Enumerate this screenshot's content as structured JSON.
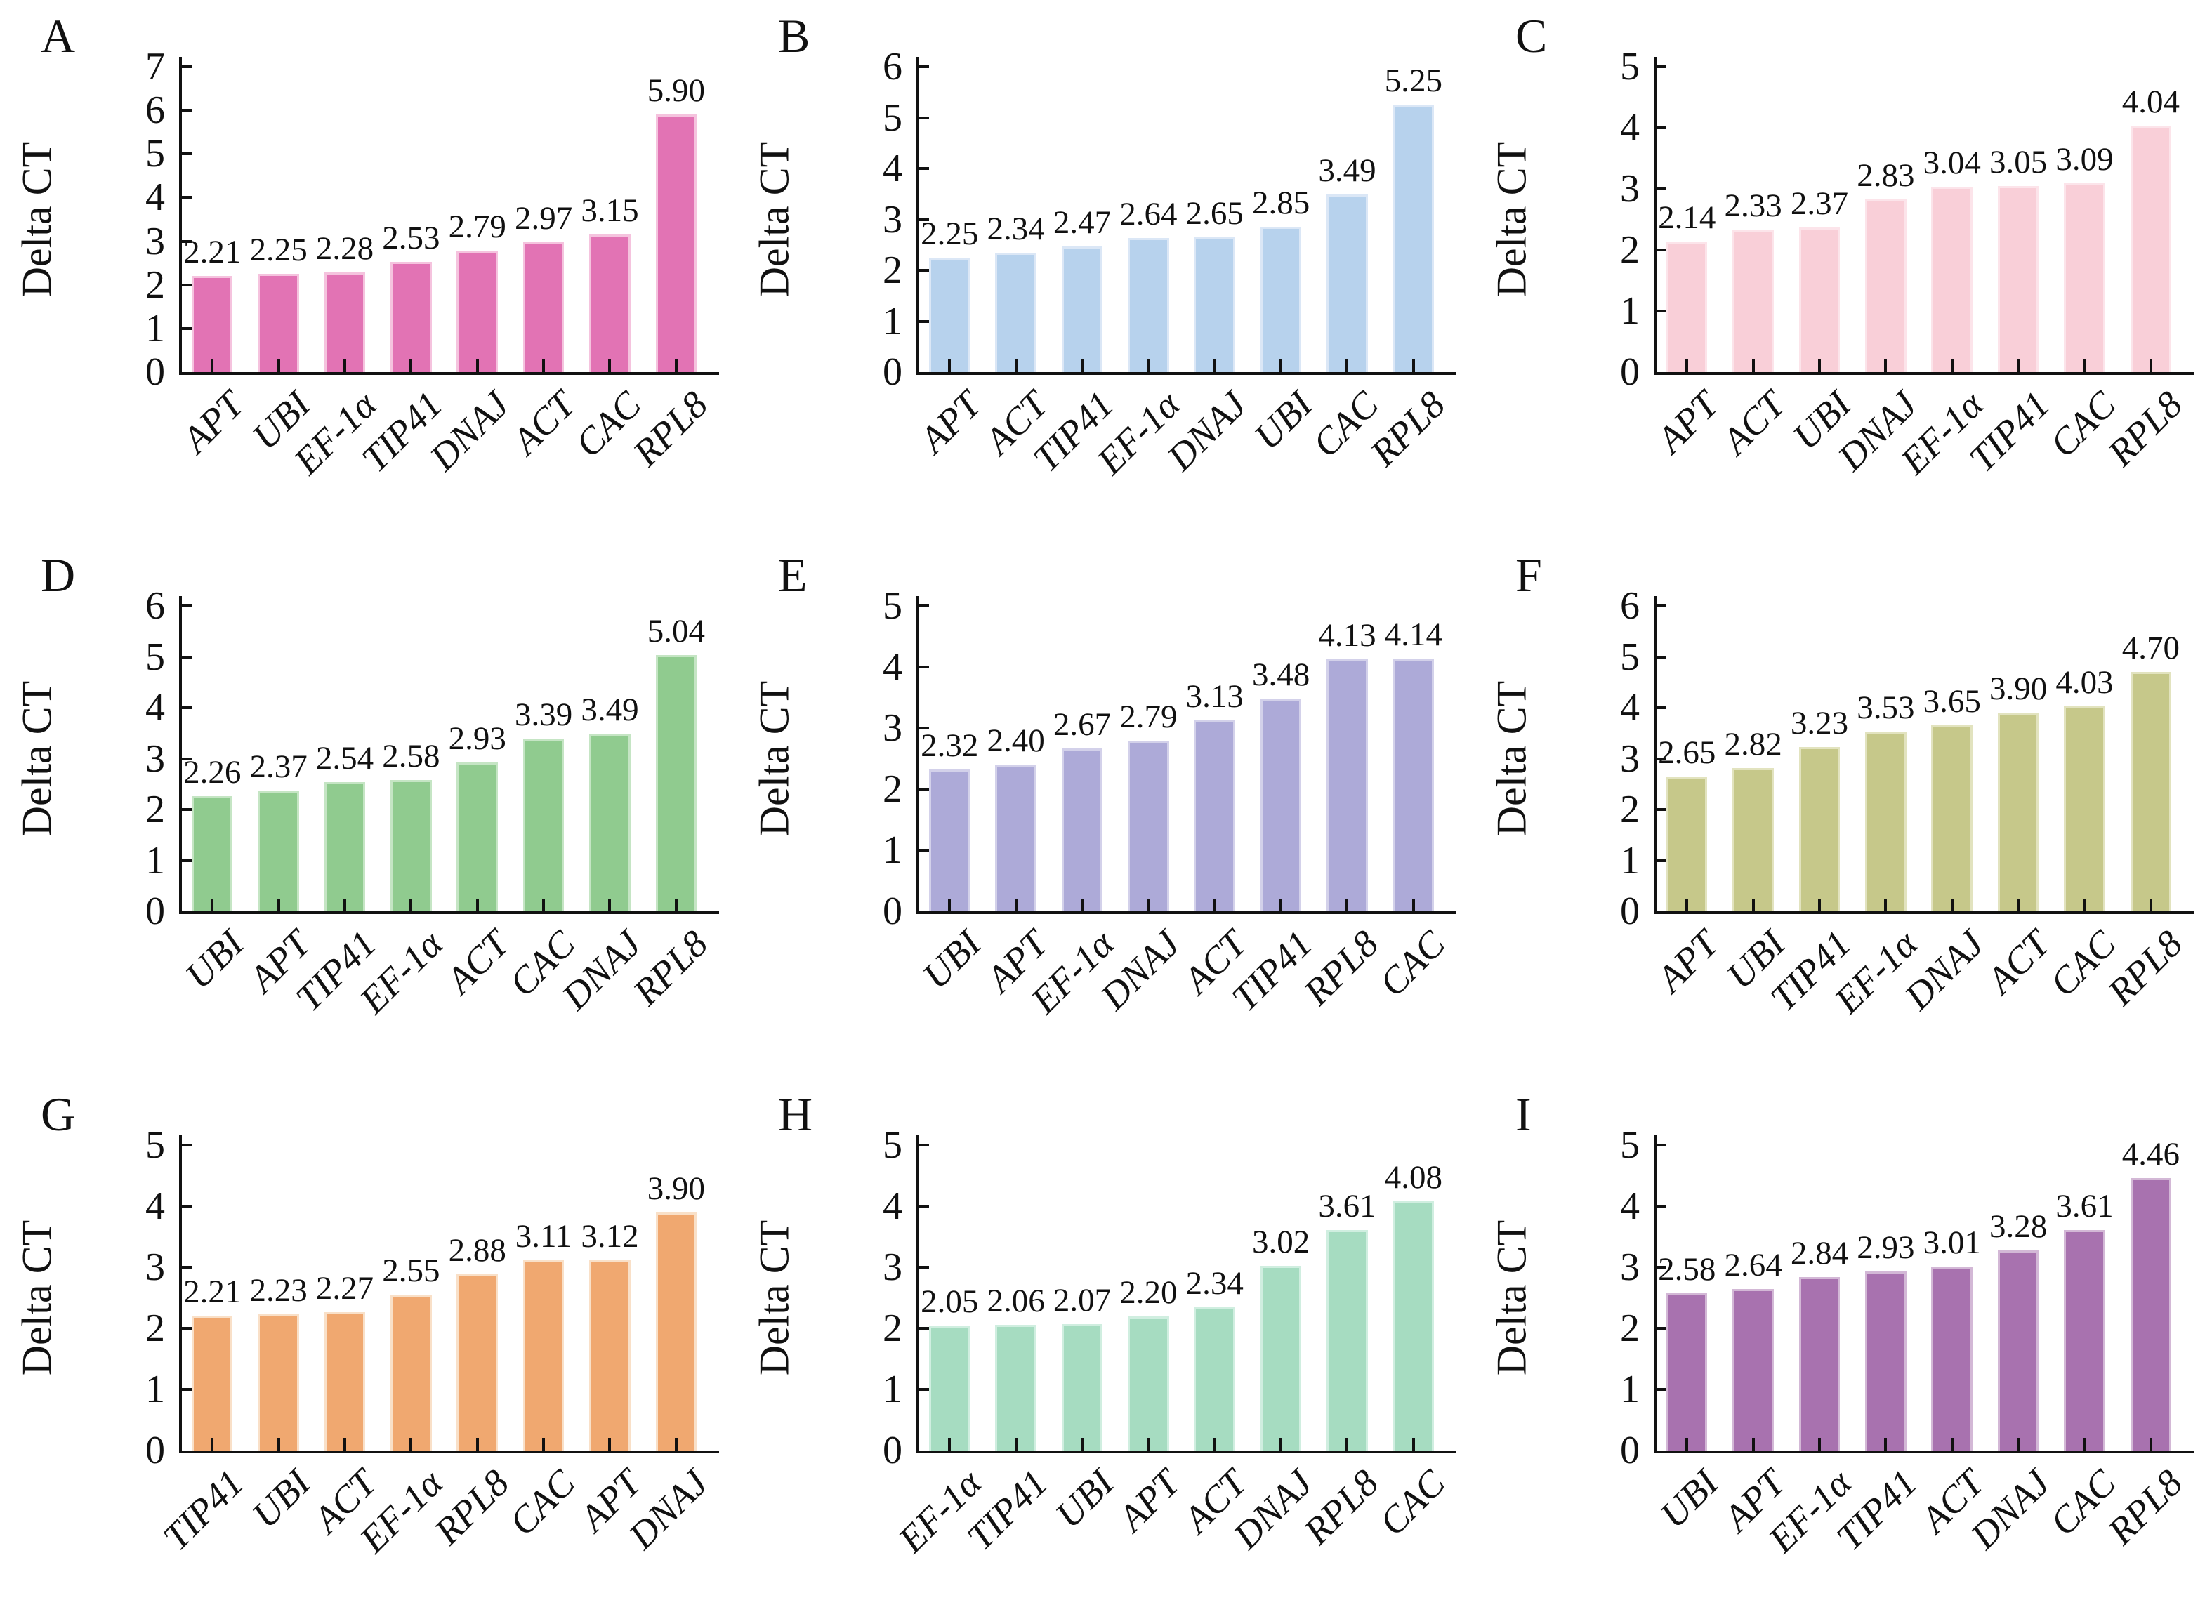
{
  "figure": {
    "ylabel": "Delta CT",
    "panel_letters": [
      "A",
      "B",
      "C",
      "D",
      "E",
      "F",
      "G",
      "H",
      "I"
    ]
  },
  "chart_data": [
    {
      "panel": "A",
      "type": "bar",
      "ylabel": "Delta CT",
      "ylim": [
        0,
        7
      ],
      "yticks": [
        0,
        1,
        2,
        3,
        4,
        5,
        6,
        7
      ],
      "bar_color": "#e273b4",
      "edge_color": "#f5c3de",
      "categories": [
        "APT",
        "UBI",
        "EF-1α",
        "TIP41",
        "DNAJ",
        "ACT",
        "CAC",
        "RPL8"
      ],
      "values": [
        2.21,
        2.25,
        2.28,
        2.53,
        2.79,
        2.97,
        3.15,
        5.9
      ],
      "value_labels": [
        "2.21",
        "2.25",
        "2.28",
        "2.53",
        "2.79",
        "2.97",
        "3.15",
        "5.90"
      ]
    },
    {
      "panel": "B",
      "type": "bar",
      "ylabel": "Delta CT",
      "ylim": [
        0,
        6
      ],
      "yticks": [
        0,
        1,
        2,
        3,
        4,
        5,
        6
      ],
      "bar_color": "#b7d2ed",
      "edge_color": "#dbe7f6",
      "categories": [
        "APT",
        "ACT",
        "TIP41",
        "EF-1α",
        "DNAJ",
        "UBI",
        "CAC",
        "RPL8"
      ],
      "values": [
        2.25,
        2.34,
        2.47,
        2.64,
        2.65,
        2.85,
        3.49,
        5.25
      ],
      "value_labels": [
        "2.25",
        "2.34",
        "2.47",
        "2.64",
        "2.65",
        "2.85",
        "3.49",
        "5.25"
      ]
    },
    {
      "panel": "C",
      "type": "bar",
      "ylabel": "Delta CT",
      "ylim": [
        0,
        5
      ],
      "yticks": [
        0,
        1,
        2,
        3,
        4,
        5
      ],
      "bar_color": "#f9cfd8",
      "edge_color": "#fce4ea",
      "categories": [
        "APT",
        "ACT",
        "UBI",
        "DNAJ",
        "EF-1α",
        "TIP41",
        "CAC",
        "RPL8"
      ],
      "values": [
        2.14,
        2.33,
        2.37,
        2.83,
        3.04,
        3.05,
        3.09,
        4.04
      ],
      "value_labels": [
        "2.14",
        "2.33",
        "2.37",
        "2.83",
        "3.04",
        "3.05",
        "3.09",
        "4.04"
      ]
    },
    {
      "panel": "D",
      "type": "bar",
      "ylabel": "Delta CT",
      "ylim": [
        0,
        6
      ],
      "yticks": [
        0,
        1,
        2,
        3,
        4,
        5,
        6
      ],
      "bar_color": "#90cb8f",
      "edge_color": "#c5e5c4",
      "categories": [
        "UBI",
        "APT",
        "TIP41",
        "EF-1α",
        "ACT",
        "CAC",
        "DNAJ",
        "RPL8"
      ],
      "values": [
        2.26,
        2.37,
        2.54,
        2.58,
        2.93,
        3.39,
        3.49,
        5.04
      ],
      "value_labels": [
        "2.26",
        "2.37",
        "2.54",
        "2.58",
        "2.93",
        "3.39",
        "3.49",
        "5.04"
      ]
    },
    {
      "panel": "E",
      "type": "bar",
      "ylabel": "Delta CT",
      "ylim": [
        0,
        5
      ],
      "yticks": [
        0,
        1,
        2,
        3,
        4,
        5
      ],
      "bar_color": "#adaad8",
      "edge_color": "#d3d1ea",
      "categories": [
        "UBI",
        "APT",
        "EF-1α",
        "DNAJ",
        "ACT",
        "TIP41",
        "RPL8",
        "CAC"
      ],
      "values": [
        2.32,
        2.4,
        2.67,
        2.79,
        3.13,
        3.48,
        4.13,
        4.14
      ],
      "value_labels": [
        "2.32",
        "2.40",
        "2.67",
        "2.79",
        "3.13",
        "3.48",
        "4.13",
        "4.14"
      ]
    },
    {
      "panel": "F",
      "type": "bar",
      "ylabel": "Delta CT",
      "ylim": [
        0,
        6
      ],
      "yticks": [
        0,
        1,
        2,
        3,
        4,
        5,
        6
      ],
      "bar_color": "#c6c88a",
      "edge_color": "#e2e3bf",
      "categories": [
        "APT",
        "UBI",
        "TIP41",
        "EF-1α",
        "DNAJ",
        "ACT",
        "CAC",
        "RPL8"
      ],
      "values": [
        2.65,
        2.82,
        3.23,
        3.53,
        3.65,
        3.9,
        4.03,
        4.7
      ],
      "value_labels": [
        "2.65",
        "2.82",
        "3.23",
        "3.53",
        "3.65",
        "3.90",
        "4.03",
        "4.70"
      ]
    },
    {
      "panel": "G",
      "type": "bar",
      "ylabel": "Delta CT",
      "ylim": [
        0,
        5
      ],
      "yticks": [
        0,
        1,
        2,
        3,
        4,
        5
      ],
      "bar_color": "#f0a870",
      "edge_color": "#f9e0c8",
      "categories": [
        "TIP41",
        "UBI",
        "ACT",
        "EF-1α",
        "RPL8",
        "CAC",
        "APT",
        "DNAJ"
      ],
      "values": [
        2.21,
        2.23,
        2.27,
        2.55,
        2.88,
        3.11,
        3.12,
        3.9
      ],
      "value_labels": [
        "2.21",
        "2.23",
        "2.27",
        "2.55",
        "2.88",
        "3.11",
        "3.12",
        "3.90"
      ]
    },
    {
      "panel": "H",
      "type": "bar",
      "ylabel": "Delta CT",
      "ylim": [
        0,
        5
      ],
      "yticks": [
        0,
        1,
        2,
        3,
        4,
        5
      ],
      "bar_color": "#a6dcc1",
      "edge_color": "#d0eee0",
      "categories": [
        "EF-1α",
        "TIP41",
        "UBI",
        "APT",
        "ACT",
        "DNAJ",
        "RPL8",
        "CAC"
      ],
      "values": [
        2.05,
        2.06,
        2.07,
        2.2,
        2.34,
        3.02,
        3.61,
        4.08
      ],
      "value_labels": [
        "2.05",
        "2.06",
        "2.07",
        "2.20",
        "2.34",
        "3.02",
        "3.61",
        "4.08"
      ]
    },
    {
      "panel": "I",
      "type": "bar",
      "ylabel": "Delta CT",
      "ylim": [
        0,
        5
      ],
      "yticks": [
        0,
        1,
        2,
        3,
        4,
        5
      ],
      "bar_color": "#a872af",
      "edge_color": "#d3b8d6",
      "categories": [
        "UBI",
        "APT",
        "EF-1α",
        "TIP41",
        "ACT",
        "DNAJ",
        "CAC",
        "RPL8"
      ],
      "values": [
        2.58,
        2.64,
        2.84,
        2.93,
        3.01,
        3.28,
        3.61,
        4.46
      ],
      "value_labels": [
        "2.58",
        "2.64",
        "2.84",
        "2.93",
        "3.01",
        "3.28",
        "3.61",
        "4.46"
      ]
    }
  ]
}
